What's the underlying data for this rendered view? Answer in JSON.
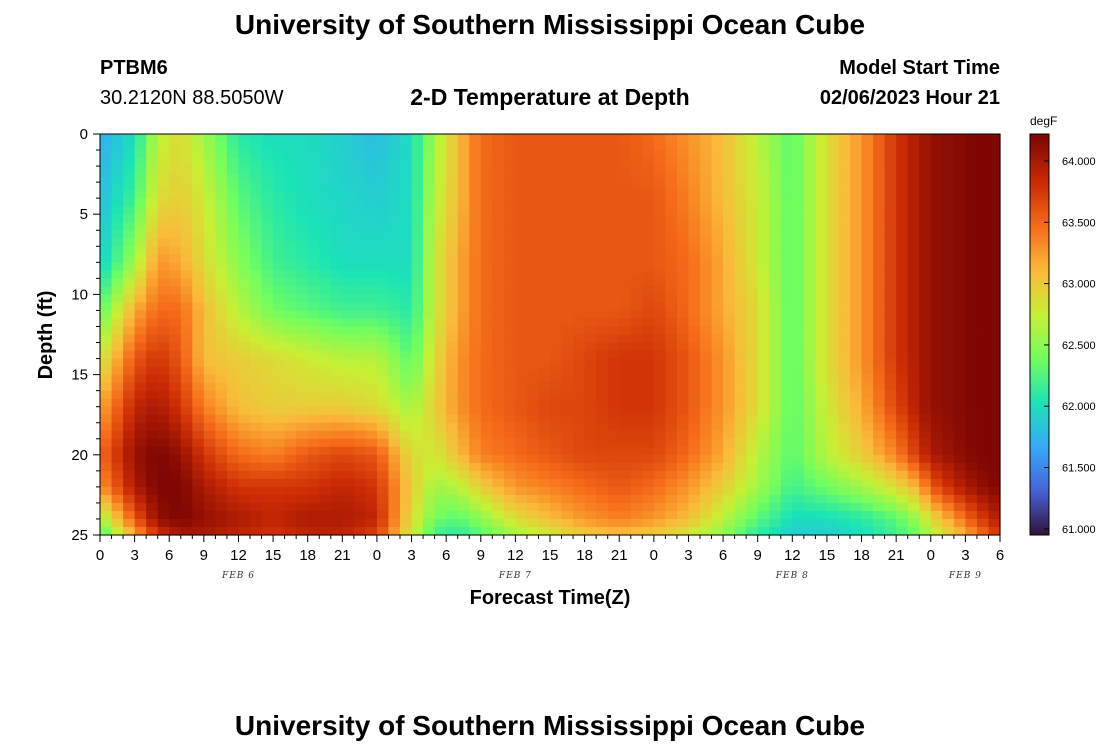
{
  "header": {
    "title": "University of Southern Mississippi Ocean Cube",
    "station": "PTBM6",
    "coords": "30.2120N  88.5050W",
    "model_start_label": "Model Start Time",
    "model_start_value": "02/06/2023 Hour 21"
  },
  "footer": {
    "title": "University of Southern Mississippi Ocean Cube"
  },
  "colors": {
    "palette": [
      "#30123b",
      "#4662d7",
      "#36aaf9",
      "#1ae4b6",
      "#72fe5e",
      "#c8ef34",
      "#faba39",
      "#f66b19",
      "#ca2a04",
      "#7a0403"
    ]
  },
  "chart_data": {
    "type": "heatmap",
    "title": "2-D Temperature at Depth",
    "xlabel": "Forecast Time(Z)",
    "ylabel": "Depth (ft)",
    "x_range_hours": [
      0,
      78
    ],
    "y_range_ft": [
      0,
      25
    ],
    "y_ticks": [
      "0",
      "5",
      "10",
      "15",
      "20",
      "25"
    ],
    "x_ticks": [
      "0",
      "3",
      "6",
      "9",
      "12",
      "15",
      "18",
      "21",
      "0",
      "3",
      "6",
      "9",
      "12",
      "15",
      "18",
      "21",
      "0",
      "3",
      "6",
      "9",
      "12",
      "15",
      "18",
      "21",
      "0",
      "3",
      "6"
    ],
    "day_labels": [
      {
        "label": "FEB 6",
        "hour": 12
      },
      {
        "label": "FEB 7",
        "hour": 36
      },
      {
        "label": "FEB 8",
        "hour": 60
      },
      {
        "label": "FEB 9",
        "hour": 75
      }
    ],
    "colorbar": {
      "unit": "degF",
      "min": 60.95,
      "max": 64.22,
      "ticks": [
        "61.000",
        "61.500",
        "62.000",
        "62.500",
        "63.000",
        "63.500",
        "64.000"
      ]
    },
    "temperature_profiles": {
      "note": "Approximate temperature (degF) by forecast hour (columns) at each depth (rows).",
      "hours": [
        0,
        3,
        5,
        7,
        9,
        12,
        15,
        18,
        21,
        24,
        27,
        29,
        31,
        33,
        36,
        39,
        42,
        45,
        48,
        51,
        54,
        57,
        60,
        63,
        66,
        69,
        71,
        72,
        74,
        76,
        78
      ],
      "depths_ft": [
        0,
        4,
        8,
        11,
        14,
        17,
        20,
        22,
        24,
        25
      ],
      "rows": [
        [
          61.7,
          62.0,
          62.7,
          62.9,
          62.6,
          62.1,
          62.0,
          62.0,
          61.9,
          61.8,
          62.0,
          62.6,
          63.1,
          63.5,
          63.6,
          63.6,
          63.6,
          63.6,
          63.5,
          63.3,
          63.1,
          62.7,
          62.3,
          62.9,
          63.3,
          63.8,
          64.0,
          64.1,
          64.15,
          64.2,
          64.2
        ],
        [
          61.8,
          62.2,
          62.9,
          63.0,
          62.8,
          62.3,
          62.1,
          62.0,
          61.95,
          61.9,
          62.0,
          62.7,
          63.1,
          63.5,
          63.6,
          63.6,
          63.6,
          63.6,
          63.6,
          63.4,
          63.1,
          62.8,
          62.3,
          62.9,
          63.3,
          63.8,
          64.0,
          64.1,
          64.15,
          64.2,
          64.2
        ],
        [
          61.9,
          62.6,
          63.3,
          63.2,
          62.9,
          62.5,
          62.2,
          62.1,
          62.0,
          62.0,
          62.0,
          62.8,
          63.2,
          63.5,
          63.6,
          63.6,
          63.6,
          63.6,
          63.6,
          63.5,
          63.2,
          62.8,
          62.3,
          62.9,
          63.3,
          63.8,
          64.0,
          64.1,
          64.15,
          64.2,
          64.2
        ],
        [
          62.3,
          63.2,
          63.5,
          63.5,
          63.1,
          62.7,
          62.4,
          62.3,
          62.2,
          62.2,
          62.1,
          62.8,
          63.2,
          63.5,
          63.6,
          63.6,
          63.6,
          63.6,
          63.7,
          63.5,
          63.2,
          62.9,
          62.3,
          62.9,
          63.3,
          63.8,
          64.0,
          64.1,
          64.15,
          64.2,
          64.2
        ],
        [
          62.8,
          63.6,
          63.8,
          63.6,
          63.1,
          63.0,
          62.9,
          62.8,
          62.7,
          62.7,
          62.3,
          62.9,
          63.3,
          63.5,
          63.6,
          63.6,
          63.7,
          63.8,
          63.8,
          63.6,
          63.3,
          62.9,
          62.3,
          62.9,
          63.3,
          63.8,
          64.0,
          64.1,
          64.15,
          64.2,
          64.2
        ],
        [
          63.2,
          63.9,
          64.0,
          63.8,
          63.4,
          63.1,
          63.0,
          63.0,
          63.0,
          62.9,
          62.6,
          63.0,
          63.3,
          63.5,
          63.6,
          63.7,
          63.7,
          63.8,
          63.8,
          63.6,
          63.3,
          62.9,
          62.3,
          62.8,
          63.2,
          63.7,
          64.0,
          64.1,
          64.15,
          64.2,
          64.2
        ],
        [
          63.5,
          64.1,
          64.2,
          64.1,
          63.8,
          63.5,
          63.4,
          63.6,
          63.7,
          63.6,
          62.9,
          62.8,
          63.1,
          63.4,
          63.5,
          63.6,
          63.7,
          63.7,
          63.7,
          63.5,
          63.2,
          62.7,
          62.3,
          62.7,
          63.0,
          63.4,
          63.8,
          64.0,
          64.1,
          64.2,
          64.2
        ],
        [
          63.3,
          64.0,
          64.2,
          64.2,
          64.0,
          63.8,
          63.8,
          63.8,
          63.9,
          63.8,
          63.0,
          62.6,
          62.7,
          63.0,
          63.3,
          63.4,
          63.5,
          63.6,
          63.5,
          63.3,
          63.0,
          62.6,
          62.2,
          62.4,
          62.6,
          62.9,
          63.2,
          63.6,
          63.9,
          64.1,
          64.2
        ],
        [
          62.6,
          63.6,
          64.1,
          64.2,
          64.1,
          64.0,
          63.9,
          64.0,
          64.0,
          63.9,
          62.9,
          62.4,
          62.3,
          62.5,
          62.9,
          63.1,
          63.3,
          63.4,
          63.3,
          63.1,
          62.7,
          62.3,
          62.0,
          62.0,
          62.1,
          62.3,
          62.6,
          62.9,
          63.3,
          63.7,
          64.0
        ],
        [
          62.2,
          63.2,
          63.8,
          64.0,
          64.0,
          63.9,
          63.8,
          63.9,
          63.9,
          63.7,
          62.8,
          62.2,
          62.1,
          62.3,
          62.6,
          62.8,
          63.0,
          63.1,
          63.0,
          62.8,
          62.5,
          62.1,
          61.9,
          61.9,
          62.0,
          62.2,
          62.4,
          62.7,
          63.0,
          63.4,
          63.8
        ]
      ]
    }
  }
}
